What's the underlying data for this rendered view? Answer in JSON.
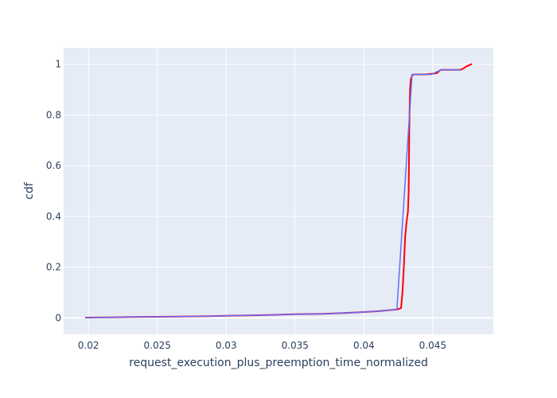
{
  "chart_data": {
    "type": "line",
    "title": "",
    "xlabel": "request_execution_plus_preemption_time_normalized",
    "ylabel": "cdf",
    "xlim": [
      0.0182,
      0.0494
    ],
    "ylim": [
      -0.065,
      1.065
    ],
    "x_ticks": [
      0.02,
      0.025,
      0.03,
      0.035,
      0.04,
      0.045
    ],
    "x_tick_labels": [
      "0.02",
      "0.025",
      "0.03",
      "0.035",
      "0.04",
      "0.045"
    ],
    "y_ticks": [
      0,
      0.2,
      0.4,
      0.6,
      0.8,
      1
    ],
    "y_tick_labels": [
      "0",
      "0.2",
      "0.4",
      "0.6",
      "0.8",
      "1"
    ],
    "grid": true,
    "legend": "none",
    "colors": {
      "plot_background": "#e5ecf6",
      "grid": "#ffffff",
      "text": "#2a3f5f"
    },
    "series": [
      {
        "color": "#ff0000",
        "x": [
          0.0198,
          0.0215,
          0.023,
          0.025,
          0.0265,
          0.028,
          0.029,
          0.03,
          0.031,
          0.032,
          0.033,
          0.0336,
          0.034,
          0.035,
          0.036,
          0.037,
          0.038,
          0.039,
          0.04,
          0.041,
          0.0418,
          0.0424,
          0.0427,
          0.0428,
          0.0429,
          0.043,
          0.0431,
          0.0432,
          0.04325,
          0.0433,
          0.04335,
          0.0434,
          0.0435,
          0.0436,
          0.044,
          0.0445,
          0.0449,
          0.0453,
          0.0455,
          0.0456,
          0.046,
          0.0465,
          0.047,
          0.0472,
          0.0474,
          0.0476,
          0.0478
        ],
        "y": [
          0.001,
          0.002,
          0.003,
          0.004,
          0.005,
          0.006,
          0.007,
          0.008,
          0.009,
          0.01,
          0.011,
          0.012,
          0.013,
          0.014,
          0.015,
          0.016,
          0.018,
          0.02,
          0.023,
          0.026,
          0.03,
          0.033,
          0.038,
          0.1,
          0.2,
          0.32,
          0.38,
          0.42,
          0.5,
          0.75,
          0.9,
          0.94,
          0.955,
          0.96,
          0.96,
          0.96,
          0.962,
          0.965,
          0.975,
          0.978,
          0.978,
          0.978,
          0.978,
          0.982,
          0.99,
          0.995,
          1.0
        ]
      },
      {
        "color": "#636efa",
        "x": [
          0.0198,
          0.0215,
          0.023,
          0.025,
          0.0265,
          0.028,
          0.029,
          0.03,
          0.031,
          0.032,
          0.033,
          0.0336,
          0.034,
          0.035,
          0.036,
          0.037,
          0.038,
          0.039,
          0.04,
          0.041,
          0.0418,
          0.0424,
          0.0435,
          0.0449,
          0.0456,
          0.047
        ],
        "y": [
          0.001,
          0.002,
          0.003,
          0.004,
          0.005,
          0.006,
          0.007,
          0.008,
          0.009,
          0.01,
          0.011,
          0.012,
          0.013,
          0.014,
          0.015,
          0.016,
          0.018,
          0.02,
          0.023,
          0.026,
          0.03,
          0.033,
          0.96,
          0.96,
          0.978,
          0.978
        ]
      }
    ]
  }
}
